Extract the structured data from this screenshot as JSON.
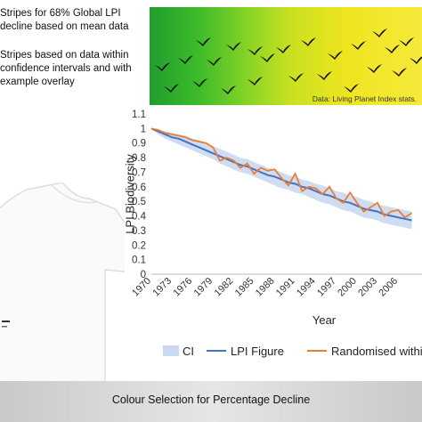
{
  "notes": {
    "line1": "Stripes for 68% Global LPI",
    "line2": "decline based on mean data",
    "line3": "Stripes based on data within",
    "line4": "confidence intervals and with",
    "line5": "example overlay"
  },
  "stripe_band": {
    "source": "Data: Living Planet Index stats.",
    "colors": [
      "#1f9e2f",
      "#8fd626",
      "#eee51f"
    ],
    "icon": "flying-birds-icon"
  },
  "tshirt": {
    "icon": "tshirt-icon"
  },
  "footer": {
    "caption": "Colour Selection for Percentage Decline"
  },
  "chart_data": {
    "type": "line",
    "ylabel": "LPI Biodiversity",
    "xlabel": "Year",
    "ylim": [
      0,
      1.1
    ],
    "yticks": [
      "0",
      "0.1",
      "0.2",
      "0.3",
      "0.4",
      "0.5",
      "0.6",
      "0.7",
      "0.8",
      "0.9",
      "1",
      "1.1"
    ],
    "xticks": [
      "1970",
      "1973",
      "1976",
      "1979",
      "1982",
      "1985",
      "1988",
      "1991",
      "1994",
      "1997",
      "2000",
      "2003",
      "2006"
    ],
    "x": [
      1970,
      1971,
      1972,
      1973,
      1974,
      1975,
      1976,
      1977,
      1978,
      1979,
      1980,
      1981,
      1982,
      1983,
      1984,
      1985,
      1986,
      1987,
      1988,
      1989,
      1990,
      1991,
      1992,
      1993,
      1994,
      1995,
      1996,
      1997,
      1998,
      1999,
      2000,
      2001,
      2002,
      2003,
      2004,
      2005,
      2006,
      2007,
      2008
    ],
    "ci_upper": [
      1.0,
      0.99,
      0.98,
      0.97,
      0.96,
      0.95,
      0.93,
      0.92,
      0.9,
      0.88,
      0.86,
      0.84,
      0.82,
      0.8,
      0.79,
      0.77,
      0.75,
      0.73,
      0.72,
      0.7,
      0.68,
      0.67,
      0.65,
      0.64,
      0.62,
      0.61,
      0.59,
      0.57,
      0.56,
      0.54,
      0.53,
      0.51,
      0.5,
      0.48,
      0.47,
      0.46,
      0.45,
      0.44,
      0.43
    ],
    "ci_lower": [
      1.0,
      0.96,
      0.93,
      0.91,
      0.89,
      0.87,
      0.85,
      0.83,
      0.81,
      0.79,
      0.76,
      0.74,
      0.72,
      0.7,
      0.69,
      0.67,
      0.65,
      0.63,
      0.61,
      0.59,
      0.58,
      0.56,
      0.55,
      0.53,
      0.51,
      0.49,
      0.48,
      0.46,
      0.44,
      0.43,
      0.41,
      0.39,
      0.38,
      0.37,
      0.35,
      0.34,
      0.33,
      0.32,
      0.31
    ],
    "series": [
      {
        "name": "CI",
        "color": "#c9d9ef"
      },
      {
        "name": "LPI Figure",
        "color": "#4472c4",
        "values": [
          1.0,
          0.98,
          0.96,
          0.94,
          0.93,
          0.91,
          0.89,
          0.87,
          0.85,
          0.83,
          0.81,
          0.79,
          0.77,
          0.75,
          0.74,
          0.72,
          0.7,
          0.68,
          0.67,
          0.65,
          0.63,
          0.62,
          0.6,
          0.59,
          0.57,
          0.55,
          0.54,
          0.52,
          0.5,
          0.49,
          0.47,
          0.45,
          0.44,
          0.43,
          0.41,
          0.4,
          0.39,
          0.38,
          0.37
        ]
      },
      {
        "name": "Randomised within",
        "color": "#ed7d31",
        "values": [
          1.0,
          0.99,
          0.97,
          0.96,
          0.95,
          0.94,
          0.92,
          0.91,
          0.9,
          0.87,
          0.78,
          0.8,
          0.78,
          0.73,
          0.76,
          0.69,
          0.73,
          0.71,
          0.72,
          0.66,
          0.61,
          0.69,
          0.57,
          0.6,
          0.59,
          0.55,
          0.6,
          0.52,
          0.49,
          0.56,
          0.49,
          0.43,
          0.46,
          0.49,
          0.4,
          0.43,
          0.44,
          0.39,
          0.42
        ]
      }
    ],
    "legend_position": "bottom",
    "grid": false
  }
}
